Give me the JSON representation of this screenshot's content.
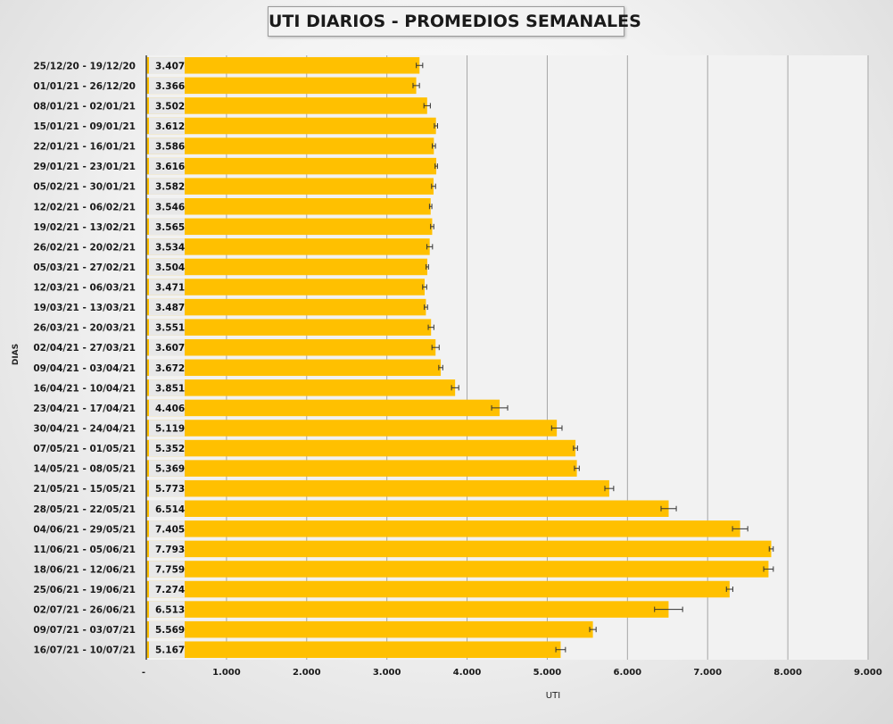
{
  "chart_data": {
    "type": "bar",
    "orientation": "horizontal",
    "title": "UTI DIARIOS - PROMEDIOS SEMANALES",
    "xlabel": "UTI",
    "ylabel": "DIAS",
    "xlim": [
      0,
      9000
    ],
    "xticks": [
      "-",
      "1.000",
      "2.000",
      "3.000",
      "4.000",
      "5.000",
      "6.000",
      "7.000",
      "8.000",
      "9.000"
    ],
    "grid": true,
    "legend": "none",
    "bar_color": "#FFC000",
    "categories": [
      "25/12/20 - 19/12/20",
      "01/01/21 - 26/12/20",
      "08/01/21 - 02/01/21",
      "15/01/21 - 09/01/21",
      "22/01/21 - 16/01/21",
      "29/01/21 - 23/01/21",
      "05/02/21 - 30/01/21",
      "12/02/21 - 06/02/21",
      "19/02/21 - 13/02/21",
      "26/02/21 - 20/02/21",
      "05/03/21 - 27/02/21",
      "12/03/21 - 06/03/21",
      "19/03/21 - 13/03/21",
      "26/03/21 - 20/03/21",
      "02/04/21 - 27/03/21",
      "09/04/21 - 03/04/21",
      "16/04/21 - 10/04/21",
      "23/04/21 - 17/04/21",
      "30/04/21 - 24/04/21",
      "07/05/21 - 01/05/21",
      "14/05/21 - 08/05/21",
      "21/05/21 - 15/05/21",
      "28/05/21 - 22/05/21",
      "04/06/21 - 29/05/21",
      "11/06/21 - 05/06/21",
      "18/06/21 - 12/06/21",
      "25/06/21 - 19/06/21",
      "02/07/21 - 26/06/21",
      "09/07/21 - 03/07/21",
      "16/07/21 - 10/07/21"
    ],
    "values": [
      3407,
      3366,
      3502,
      3612,
      3586,
      3616,
      3582,
      3546,
      3565,
      3534,
      3504,
      3471,
      3487,
      3551,
      3607,
      3672,
      3851,
      4406,
      5119,
      5352,
      5369,
      5773,
      6514,
      7405,
      7793,
      7759,
      7274,
      6513,
      5569,
      5167
    ],
    "value_labels": [
      "3.407",
      "3.366",
      "3.502",
      "3.612",
      "3.586",
      "3.616",
      "3.582",
      "3.546",
      "3.565",
      "3.534",
      "3.504",
      "3.471",
      "3.487",
      "3.551",
      "3.607",
      "3.672",
      "3.851",
      "4.406",
      "5.119",
      "5.352",
      "5.369",
      "5.773",
      "6.514",
      "7.405",
      "7.793",
      "7.759",
      "7.274",
      "6.513",
      "5.569",
      "5.167"
    ],
    "error": [
      40,
      40,
      40,
      20,
      20,
      15,
      25,
      15,
      20,
      35,
      15,
      25,
      20,
      35,
      45,
      25,
      45,
      100,
      65,
      25,
      30,
      55,
      95,
      95,
      25,
      60,
      40,
      175,
      40,
      60
    ]
  }
}
